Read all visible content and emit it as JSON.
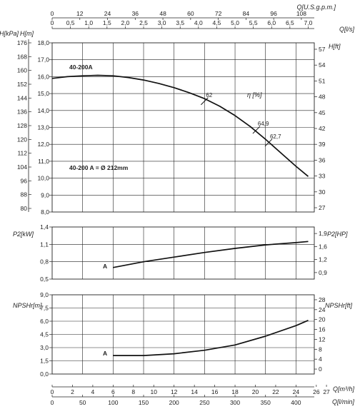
{
  "chart_data": [
    {
      "type": "line",
      "panel": "head",
      "title": "",
      "model_label": "40-200A",
      "curve_label": "40-200 A = Ø 212mm",
      "y_left_label": "H[m]",
      "y_left_label_2": "H[kPa]",
      "y_right_label": "H[ft]",
      "efficiency_label": "η [%]",
      "x_top_label": "Q[l/s]",
      "x_top2_label": "Q[U.S.g.p.m.]",
      "ylim": [
        8.0,
        18.0
      ],
      "xlim_lmin": [
        0,
        430
      ],
      "y_left_ticks": [
        "8,0",
        "9,0",
        "10,0",
        "11,0",
        "12,0",
        "13,0",
        "14,0",
        "15,0",
        "16,0",
        "17,0",
        "18,0"
      ],
      "y_kpa_ticks": [
        "80",
        "88",
        "96",
        "104",
        "112",
        "120",
        "128",
        "136",
        "144",
        "152",
        "160",
        "168",
        "176"
      ],
      "y_ft_ticks": [
        "27",
        "30",
        "33",
        "36",
        "39",
        "42",
        "45",
        "48",
        "51",
        "54",
        "57"
      ],
      "x_top_ticks": [
        "0",
        "0,5",
        "1,0",
        "1,5",
        "2,0",
        "2,5",
        "3,0",
        "3,5",
        "4,0",
        "4,5",
        "5,0",
        "5,5",
        "6,0",
        "6,5",
        "7,0"
      ],
      "x_top2_ticks": [
        "0",
        "12",
        "24",
        "36",
        "48",
        "60",
        "72",
        "84",
        "96",
        "108"
      ],
      "series": [
        {
          "x": [
            0,
            25,
            50,
            75,
            100,
            125,
            150,
            175,
            200,
            225,
            250,
            275,
            300,
            325,
            350,
            375,
            400,
            420
          ],
          "y": [
            15.9,
            16.0,
            16.05,
            16.08,
            16.05,
            15.95,
            15.8,
            15.6,
            15.35,
            15.05,
            14.7,
            14.25,
            13.7,
            13.05,
            12.3,
            11.5,
            10.7,
            10.1
          ]
        }
      ],
      "efficiency_marks": [
        {
          "x": 250,
          "y": 14.55,
          "label": "62"
        },
        {
          "x": 335,
          "y": 12.85,
          "label": "64,9"
        },
        {
          "x": 355,
          "y": 12.1,
          "label": "62,7"
        }
      ]
    },
    {
      "type": "line",
      "panel": "power",
      "y_left_label": "P2[kW]",
      "y_right_label": "P2[HP]",
      "ylim": [
        0.5,
        1.4
      ],
      "y_left_ticks": [
        "0,5",
        "0,8",
        "1,1",
        "1,4"
      ],
      "y_right_ticks": [
        "0,9",
        "1,2",
        "1,6",
        "1,9"
      ],
      "curve_label": "A",
      "series": [
        {
          "x": [
            100,
            150,
            200,
            250,
            300,
            350,
            400,
            420
          ],
          "y": [
            0.7,
            0.8,
            0.88,
            0.96,
            1.03,
            1.09,
            1.13,
            1.15
          ]
        }
      ]
    },
    {
      "type": "line",
      "panel": "npsh",
      "y_left_label": "NPSHr[m]",
      "y_right_label": "NPSHr[ft]",
      "ylim": [
        0.0,
        9.0
      ],
      "y_left_ticks": [
        "0,0",
        "1,5",
        "3,0",
        "4,5",
        "6,0",
        "7,5",
        "9,0"
      ],
      "y_right_ticks": [
        "0",
        "4",
        "8",
        "12",
        "16",
        "20",
        "24",
        "28"
      ],
      "curve_label": "A",
      "x_bottom_label": "Q[l/min]",
      "x_bottom2_label": "Q[m³/h]",
      "x_bottom_ticks": [
        "0",
        "50",
        "100",
        "150",
        "200",
        "250",
        "300",
        "350",
        "400"
      ],
      "x_bottom2_ticks": [
        "0",
        "2",
        "4",
        "6",
        "8",
        "10",
        "12",
        "14",
        "16",
        "18",
        "20",
        "22",
        "24",
        "26",
        "27"
      ],
      "series": [
        {
          "x": [
            100,
            150,
            200,
            250,
            300,
            350,
            400,
            420
          ],
          "y": [
            2.1,
            2.1,
            2.3,
            2.7,
            3.3,
            4.3,
            5.5,
            6.1
          ]
        }
      ]
    }
  ],
  "colors": {
    "curve": "#111111",
    "grid": "#222222",
    "text": "#222222"
  }
}
